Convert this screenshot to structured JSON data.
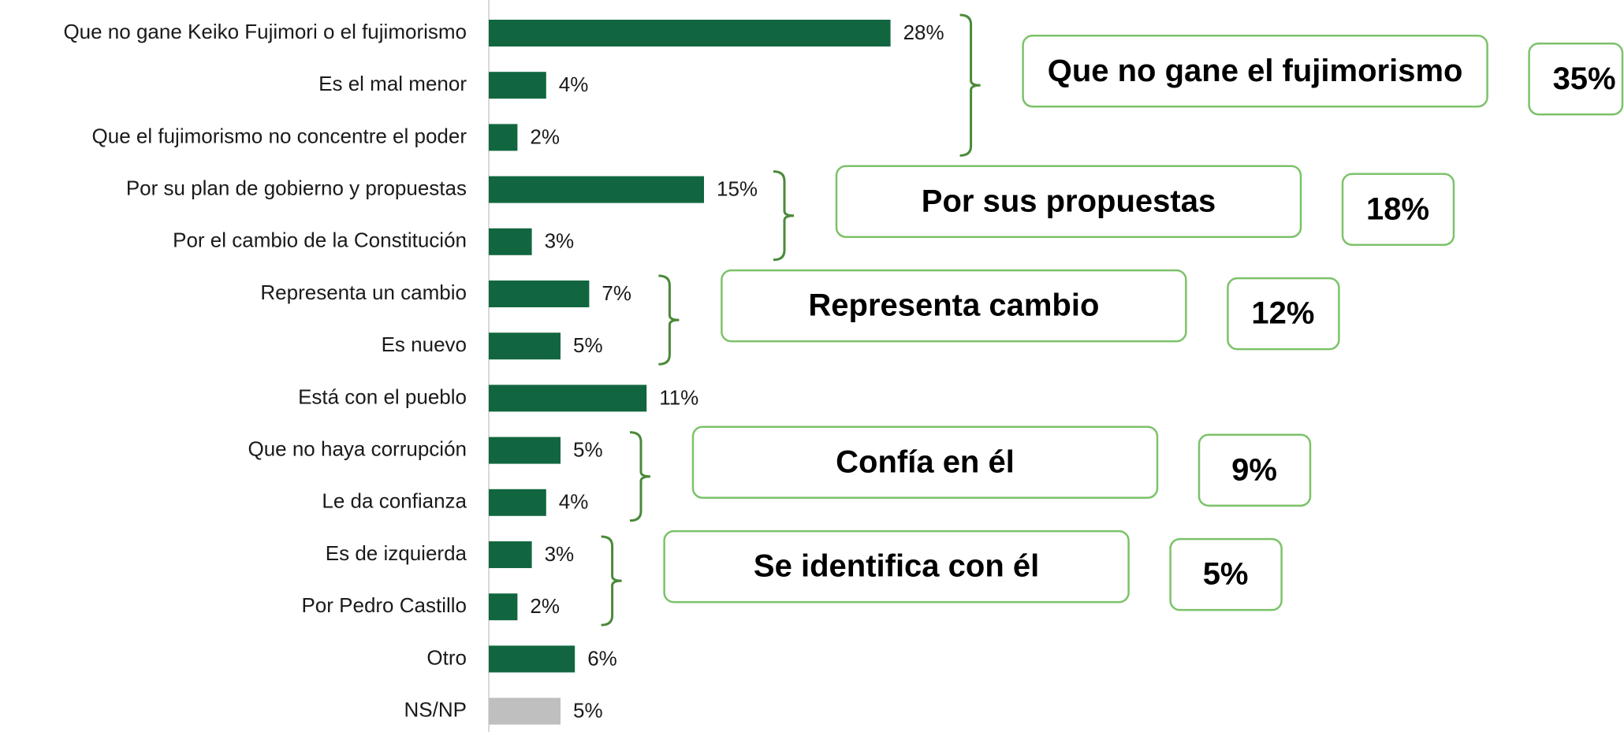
{
  "chart_data": {
    "type": "bar",
    "orientation": "horizontal",
    "categories": [
      "Que no gane Keiko Fujimori o el fujimorismo",
      "Es el mal menor",
      "Que el fujimorismo no concentre el poder",
      "Por su plan de gobierno y propuestas",
      "Por el cambio de la Constitución",
      "Representa un cambio",
      "Es nuevo",
      "Está con el pueblo",
      "Que no haya corrupción",
      "Le da confianza",
      "Es de izquierda",
      "Por Pedro Castillo",
      "Otro",
      "NS/NP"
    ],
    "values": [
      28,
      4,
      2,
      15,
      3,
      7,
      5,
      11,
      5,
      4,
      3,
      2,
      6,
      5
    ],
    "value_labels": [
      "28%",
      "4%",
      "2%",
      "15%",
      "3%",
      "7%",
      "5%",
      "11%",
      "5%",
      "4%",
      "3%",
      "2%",
      "6%",
      "5%"
    ],
    "colors": [
      "#116640",
      "#116640",
      "#116640",
      "#116640",
      "#116640",
      "#116640",
      "#116640",
      "#116640",
      "#116640",
      "#116640",
      "#116640",
      "#116640",
      "#116640",
      "#bfbfbf"
    ],
    "groups": [
      {
        "label": "Que no gane el fujimorismo",
        "value": 35,
        "value_label": "35%",
        "rows": [
          0,
          1,
          2
        ]
      },
      {
        "label": "Por sus propuestas",
        "value": 18,
        "value_label": "18%",
        "rows": [
          3,
          4
        ]
      },
      {
        "label": "Representa cambio",
        "value": 12,
        "value_label": "12%",
        "rows": [
          5,
          6
        ]
      },
      {
        "label": "Confía en él",
        "value": 9,
        "value_label": "9%",
        "rows": [
          8,
          9
        ]
      },
      {
        "label": "Se identifica con él",
        "value": 5,
        "value_label": "5%",
        "rows": [
          10,
          11
        ]
      }
    ]
  }
}
